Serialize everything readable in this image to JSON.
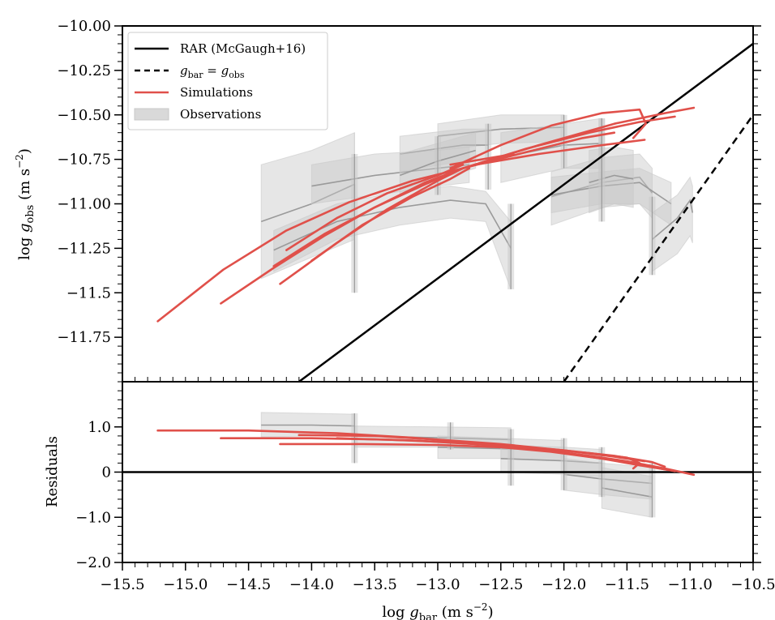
{
  "colors": {
    "simulation": "#e0504a",
    "observation_band": "#c8c8c8",
    "observation_line": "#9a9a9a",
    "reference": "#000000",
    "background": "#ffffff"
  },
  "chart_data": [
    {
      "panel": "main",
      "type": "line",
      "xlim": [
        -15.5,
        -10.5
      ],
      "ylim": [
        -12.0,
        -10.0
      ],
      "xlabel": "log g_bar (m s^-2)",
      "ylabel": "log g_obs (m s^-2)",
      "y_ticks": [
        "-10.00",
        "-10.25",
        "-10.50",
        "-10.75",
        "-11.00",
        "-11.25",
        "-11.5",
        "-11.75"
      ],
      "legend": {
        "placement": "upper-left",
        "entries": [
          {
            "label": "RAR (McGaugh+16)",
            "style": "solid-black"
          },
          {
            "label": "g_bar = g_obs",
            "style": "dashed-black"
          },
          {
            "label": "Simulations",
            "style": "solid-red"
          },
          {
            "label": "Observations",
            "style": "grey-band"
          }
        ]
      },
      "reference_lines": [
        {
          "name": "RAR (McGaugh+16)",
          "x": [
            -14.1,
            -10.5
          ],
          "y": [
            -12.0,
            -10.1
          ]
        },
        {
          "name": "g_bar = g_obs",
          "x": [
            -12.0,
            -10.5
          ],
          "y": [
            -12.0,
            -10.5
          ]
        }
      ],
      "simulations": [
        {
          "x": [
            -15.22,
            -14.7,
            -14.2,
            -13.7,
            -13.2,
            -12.8
          ],
          "y": [
            -11.66,
            -11.37,
            -11.15,
            -10.99,
            -10.87,
            -10.8
          ]
        },
        {
          "x": [
            -14.72,
            -14.3,
            -13.9,
            -13.5,
            -13.1,
            -12.8
          ],
          "y": [
            -11.56,
            -11.36,
            -11.18,
            -11.02,
            -10.89,
            -10.8
          ]
        },
        {
          "x": [
            -14.25,
            -13.8,
            -13.4,
            -13.0,
            -12.8
          ],
          "y": [
            -11.45,
            -11.22,
            -11.03,
            -10.87,
            -10.8
          ]
        },
        {
          "x": [
            -14.3,
            -13.9,
            -13.5,
            -13.1,
            -12.8
          ],
          "y": [
            -11.35,
            -11.17,
            -11.02,
            -10.88,
            -10.8
          ]
        },
        {
          "x": [
            -14.0,
            -13.6,
            -13.2,
            -12.9,
            -12.75
          ],
          "y": [
            -11.32,
            -11.12,
            -10.96,
            -10.86,
            -10.8
          ]
        },
        {
          "x": [
            -14.2,
            -13.8,
            -13.4,
            -13.0,
            -12.8
          ],
          "y": [
            -11.26,
            -11.08,
            -10.94,
            -10.84,
            -10.78
          ]
        },
        {
          "x": [
            -12.9,
            -12.5,
            -12.1,
            -11.7,
            -11.4,
            -11.35,
            -11.45
          ],
          "y": [
            -10.8,
            -10.67,
            -10.56,
            -10.49,
            -10.47,
            -10.55,
            -10.63
          ]
        },
        {
          "x": [
            -12.8,
            -12.2,
            -11.6,
            -11.2,
            -10.97
          ],
          "y": [
            -10.8,
            -10.67,
            -10.55,
            -10.49,
            -10.46
          ]
        },
        {
          "x": [
            -12.8,
            -12.3,
            -11.8,
            -11.4,
            -11.12
          ],
          "y": [
            -10.8,
            -10.69,
            -10.6,
            -10.54,
            -10.51
          ]
        },
        {
          "x": [
            -12.8,
            -12.3,
            -11.85,
            -11.6
          ],
          "y": [
            -10.8,
            -10.71,
            -10.63,
            -10.6
          ]
        },
        {
          "x": [
            -12.7,
            -12.2,
            -11.7,
            -11.36
          ],
          "y": [
            -10.78,
            -10.72,
            -10.67,
            -10.64
          ]
        },
        {
          "x": [
            -12.9,
            -12.4
          ],
          "y": [
            -10.78,
            -10.72
          ]
        }
      ],
      "observations": [
        {
          "x": [
            -14.4,
            -14.0,
            -13.66
          ],
          "lower": [
            -11.42,
            -11.3,
            -11.2
          ],
          "upper": [
            -10.78,
            -10.7,
            -10.6
          ],
          "line": [
            -11.1,
            -11.0,
            -10.89
          ]
        },
        {
          "x": [
            -13.66,
            -13.66
          ],
          "lower": [
            -11.2,
            -11.5
          ],
          "upper": [
            -10.6,
            -10.75
          ],
          "line": [
            -10.89,
            -11.0
          ]
        },
        {
          "x": [
            -14.0,
            -13.5,
            -13.0,
            -12.75
          ],
          "lower": [
            -11.0,
            -10.95,
            -10.9,
            -10.88
          ],
          "upper": [
            -10.78,
            -10.72,
            -10.7,
            -10.68
          ],
          "line": [
            -10.9,
            -10.84,
            -10.8,
            -10.78
          ]
        },
        {
          "x": [
            -14.3,
            -13.8,
            -13.3,
            -12.9,
            -12.62,
            -12.42
          ],
          "lower": [
            -11.38,
            -11.2,
            -11.12,
            -11.08,
            -11.1,
            -11.48
          ],
          "upper": [
            -11.15,
            -11.0,
            -10.93,
            -10.9,
            -10.93,
            -11.1
          ],
          "line": [
            -11.26,
            -11.1,
            -11.02,
            -10.98,
            -11.0,
            -11.25
          ]
        },
        {
          "x": [
            -13.0,
            -12.5,
            -12.0
          ],
          "lower": [
            -10.7,
            -10.66,
            -10.65
          ],
          "upper": [
            -10.55,
            -10.5,
            -10.5
          ],
          "line": [
            -10.62,
            -10.58,
            -10.57
          ]
        },
        {
          "x": [
            -13.3,
            -12.8,
            -12.6
          ],
          "lower": [
            -10.82,
            -10.76,
            -10.76
          ],
          "upper": [
            -10.62,
            -10.58,
            -10.58
          ],
          "line": [
            -10.72,
            -10.67,
            -10.67
          ]
        },
        {
          "x": [
            -13.3,
            -13.0,
            -12.7
          ],
          "lower": [
            -10.95,
            -10.86,
            -10.8
          ],
          "upper": [
            -10.72,
            -10.66,
            -10.6
          ],
          "line": [
            -10.84,
            -10.76,
            -10.7
          ]
        },
        {
          "x": [
            -12.5,
            -12.0,
            -11.7
          ],
          "lower": [
            -10.88,
            -10.8,
            -10.8
          ],
          "upper": [
            -10.6,
            -10.55,
            -10.52
          ],
          "line": [
            -10.74,
            -10.67,
            -10.66
          ]
        },
        {
          "x": [
            -12.1,
            -11.7,
            -11.4,
            -11.3
          ],
          "lower": [
            -11.12,
            -11.02,
            -11.0,
            -11.08
          ],
          "upper": [
            -10.82,
            -10.74,
            -10.72,
            -10.8
          ],
          "line": [
            -10.96,
            -10.88,
            -10.85,
            -10.94
          ]
        },
        {
          "x": [
            -12.1,
            -11.7,
            -11.4,
            -11.15
          ],
          "lower": [
            -11.05,
            -11.0,
            -11.0,
            -11.12
          ],
          "upper": [
            -10.85,
            -10.82,
            -10.8,
            -10.88
          ],
          "line": [
            -10.95,
            -10.9,
            -10.88,
            -11.0
          ]
        },
        {
          "x": [
            -11.3,
            -11.1,
            -11.0,
            -10.98
          ],
          "lower": [
            -11.38,
            -11.28,
            -11.18,
            -11.22
          ],
          "upper": [
            -11.05,
            -10.95,
            -10.85,
            -10.9
          ],
          "line": [
            -11.2,
            -11.08,
            -10.98,
            -11.05
          ]
        },
        {
          "x": [
            -11.8,
            -11.6,
            -11.45
          ],
          "lower": [
            -11.05,
            -11.0,
            -11.02
          ],
          "upper": [
            -10.7,
            -10.68,
            -10.7
          ],
          "line": [
            -10.88,
            -10.84,
            -10.86
          ]
        }
      ],
      "observation_verticals": [
        {
          "x": -13.66,
          "y0": -11.5,
          "y1": -10.72
        },
        {
          "x": -13.0,
          "y0": -10.95,
          "y1": -10.62
        },
        {
          "x": -12.6,
          "y0": -10.92,
          "y1": -10.55
        },
        {
          "x": -12.42,
          "y0": -11.48,
          "y1": -11.0
        },
        {
          "x": -12.0,
          "y0": -10.8,
          "y1": -10.5
        },
        {
          "x": -11.7,
          "y0": -11.1,
          "y1": -10.52
        },
        {
          "x": -11.7,
          "y0": -10.9,
          "y1": -10.52
        },
        {
          "x": -11.3,
          "y0": -11.4,
          "y1": -10.96
        }
      ]
    },
    {
      "panel": "residuals",
      "type": "line",
      "xlim": [
        -15.5,
        -10.5
      ],
      "ylim": [
        -2.0,
        2.0
      ],
      "xlabel": "log g_bar (m s^-2)",
      "ylabel": "Residuals",
      "x_ticks": [
        "-15.5",
        "-15.0",
        "-14.5",
        "-14.0",
        "-13.5",
        "-13.0",
        "-12.5",
        "-12.0",
        "-11.5",
        "-11.0",
        "-10.5"
      ],
      "y_ticks": [
        "1.0",
        "0",
        "-1.0",
        "-2.0"
      ],
      "reference_lines": [
        {
          "name": "zero",
          "x": [
            -15.5,
            -10.5
          ],
          "y": [
            0,
            0
          ]
        }
      ],
      "simulations": [
        {
          "x": [
            -15.22,
            -14.5,
            -13.8,
            -13.2,
            -12.7,
            -12.2,
            -11.8,
            -11.5,
            -11.2,
            -10.97
          ],
          "y": [
            0.92,
            0.92,
            0.86,
            0.76,
            0.65,
            0.5,
            0.36,
            0.24,
            0.08,
            -0.06
          ]
        },
        {
          "x": [
            -14.72,
            -14.0,
            -13.4,
            -12.9,
            -12.4,
            -12.0,
            -11.6,
            -11.4,
            -11.12
          ],
          "y": [
            0.75,
            0.75,
            0.72,
            0.66,
            0.56,
            0.42,
            0.26,
            0.16,
            0.02
          ]
        },
        {
          "x": [
            -14.25,
            -13.6,
            -13.0,
            -12.5,
            -12.1,
            -11.7,
            -11.4,
            -11.15
          ],
          "y": [
            0.62,
            0.62,
            0.6,
            0.55,
            0.45,
            0.3,
            0.15,
            0.04
          ]
        },
        {
          "x": [
            -14.1,
            -13.5,
            -13.0,
            -12.5,
            -12.0,
            -11.6,
            -11.36
          ],
          "y": [
            0.82,
            0.8,
            0.72,
            0.62,
            0.48,
            0.34,
            0.24
          ]
        },
        {
          "x": [
            -13.8,
            -13.2,
            -12.7,
            -12.2,
            -11.8,
            -11.5,
            -11.4,
            -11.45
          ],
          "y": [
            0.75,
            0.7,
            0.62,
            0.52,
            0.42,
            0.32,
            0.2,
            0.08
          ]
        },
        {
          "x": [
            -13.0,
            -12.5,
            -12.0,
            -11.6,
            -11.3,
            -11.2
          ],
          "y": [
            0.68,
            0.6,
            0.48,
            0.36,
            0.22,
            0.12
          ]
        }
      ],
      "observations": [
        {
          "x": [
            -14.4,
            -14.0,
            -13.66
          ],
          "lower": [
            0.78,
            0.8,
            0.8
          ],
          "upper": [
            1.32,
            1.3,
            1.28
          ],
          "line": [
            1.04,
            1.04,
            1.02
          ]
        },
        {
          "x": [
            -13.66,
            -13.0,
            -12.42
          ],
          "lower": [
            0.55,
            0.55,
            0.5
          ],
          "upper": [
            1.02,
            1.0,
            0.98
          ],
          "line": [
            0.8,
            0.76,
            0.72
          ]
        },
        {
          "x": [
            -13.0,
            -12.5,
            -12.0
          ],
          "lower": [
            0.3,
            0.3,
            0.25
          ],
          "upper": [
            0.8,
            0.75,
            0.7
          ],
          "line": [
            0.55,
            0.52,
            0.48
          ]
        },
        {
          "x": [
            -12.5,
            -12.0,
            -11.7
          ],
          "lower": [
            0.0,
            -0.05,
            -0.1
          ],
          "upper": [
            0.6,
            0.55,
            0.5
          ],
          "line": [
            0.3,
            0.25,
            0.2
          ]
        },
        {
          "x": [
            -12.0,
            -11.7,
            -11.3
          ],
          "lower": [
            -0.4,
            -0.5,
            -0.6
          ],
          "upper": [
            0.3,
            0.2,
            0.1
          ],
          "line": [
            -0.05,
            -0.15,
            -0.25
          ]
        },
        {
          "x": [
            -11.7,
            -11.5,
            -11.3
          ],
          "lower": [
            -0.8,
            -0.9,
            -1.0
          ],
          "upper": [
            0.1,
            0.0,
            -0.1
          ],
          "line": [
            -0.35,
            -0.45,
            -0.55
          ]
        }
      ],
      "observation_verticals": [
        {
          "x": -13.66,
          "y0": 0.2,
          "y1": 1.3
        },
        {
          "x": -12.9,
          "y0": 0.5,
          "y1": 1.1
        },
        {
          "x": -12.42,
          "y0": -0.3,
          "y1": 0.95
        },
        {
          "x": -12.0,
          "y0": -0.4,
          "y1": 0.75
        },
        {
          "x": -11.7,
          "y0": -0.55,
          "y1": 0.55
        },
        {
          "x": -11.3,
          "y0": -1.0,
          "y1": 0.2
        }
      ]
    }
  ]
}
